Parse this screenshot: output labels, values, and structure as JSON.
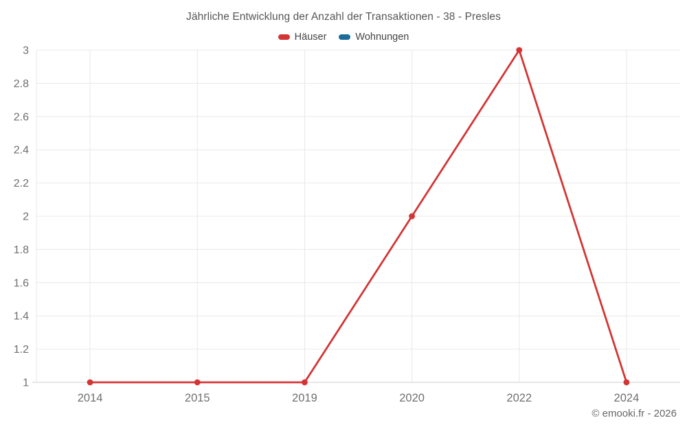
{
  "chart_data": {
    "type": "line",
    "title": "Jährliche Entwicklung der Anzahl der Transaktionen - 38 - Presles",
    "categories": [
      "2014",
      "2015",
      "2019",
      "2020",
      "2022",
      "2024"
    ],
    "series": [
      {
        "name": "Häuser",
        "color": "#d43434",
        "values": [
          1,
          1,
          1,
          2,
          3,
          1
        ]
      },
      {
        "name": "Wohnungen",
        "color": "#1c6d99",
        "values": []
      }
    ],
    "xlabel": "",
    "ylabel": "",
    "ylim": [
      1,
      3
    ],
    "ytick_step": 0.2,
    "ytick_labels": [
      "1",
      "1.2",
      "1.4",
      "1.6",
      "1.8",
      "2",
      "2.2",
      "2.4",
      "2.6",
      "2.8",
      "3"
    ],
    "grid": true,
    "legend_position": "top",
    "colors": {
      "grid": "#e8e8e8",
      "axis_line": "#cccccc",
      "tick_text": "#6f6f6f",
      "title_text": "#565656"
    }
  },
  "footer": {
    "copyright": "© emooki.fr - 2026"
  }
}
